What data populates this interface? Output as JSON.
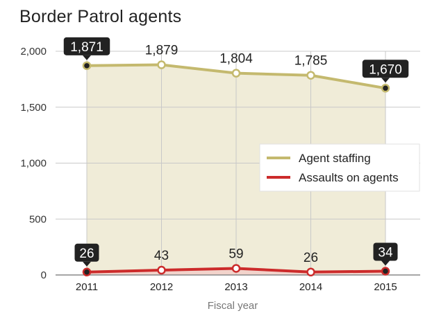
{
  "title": "Border Patrol agents",
  "chart_data": {
    "type": "line",
    "title": "Border Patrol agents",
    "xlabel": "Fiscal year",
    "ylabel": "",
    "categories": [
      "2011",
      "2012",
      "2013",
      "2014",
      "2015"
    ],
    "ylim": [
      0,
      2000
    ],
    "yticks": [
      0,
      500,
      1000,
      1500,
      2000
    ],
    "ytick_labels": [
      "0",
      "500",
      "1,000",
      "1,500",
      "2,000"
    ],
    "grid": true,
    "legend_position": "right",
    "series": [
      {
        "name": "Agent staffing",
        "values": [
          1871,
          1879,
          1804,
          1785,
          1670
        ],
        "labels": [
          "1,871",
          "1,879",
          "1,804",
          "1,785",
          "1,670"
        ],
        "highlighted": [
          true,
          false,
          false,
          false,
          true
        ],
        "color": "#c4b96e",
        "fill": "#f0ecd8"
      },
      {
        "name": "Assaults on agents",
        "values": [
          26,
          43,
          59,
          26,
          34
        ],
        "labels": [
          "26",
          "43",
          "59",
          "26",
          "34"
        ],
        "highlighted": [
          true,
          false,
          false,
          false,
          true
        ],
        "color": "#cc2b2b",
        "fill": "#f2d3cb"
      }
    ]
  }
}
